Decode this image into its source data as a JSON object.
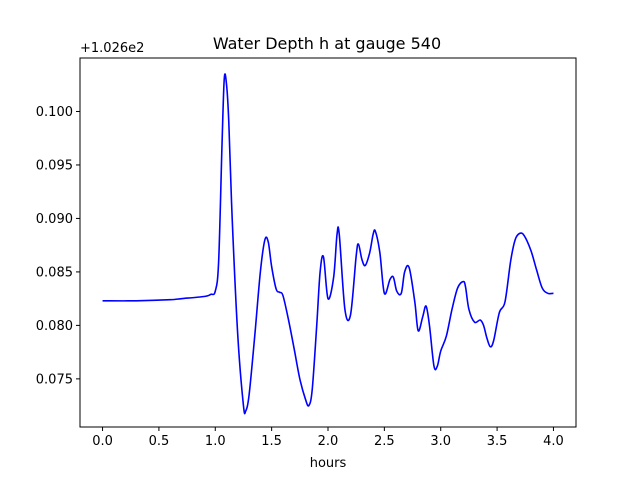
{
  "chart_data": {
    "type": "line",
    "title": "Water Depth h at gauge 540",
    "xlabel": "hours",
    "ylabel": "",
    "offset_label": "+1.026e2",
    "xlim": [
      -0.2,
      4.2
    ],
    "ylim": [
      0.0705,
      0.105
    ],
    "x_ticks": [
      0.0,
      0.5,
      1.0,
      1.5,
      2.0,
      2.5,
      3.0,
      3.5,
      4.0
    ],
    "x_tick_labels": [
      "0.0",
      "0.5",
      "1.0",
      "1.5",
      "2.0",
      "2.5",
      "3.0",
      "3.5",
      "4.0"
    ],
    "y_ticks": [
      0.075,
      0.08,
      0.085,
      0.09,
      0.095,
      0.1
    ],
    "y_tick_labels": [
      "0.075",
      "0.080",
      "0.085",
      "0.090",
      "0.095",
      "0.100"
    ],
    "grid": false,
    "series": [
      {
        "color": "#0000ff",
        "x": [
          0.0,
          0.3,
          0.6,
          0.7,
          0.9,
          0.96,
          1.0,
          1.03,
          1.06,
          1.08,
          1.1,
          1.12,
          1.15,
          1.2,
          1.25,
          1.27,
          1.3,
          1.35,
          1.4,
          1.44,
          1.47,
          1.5,
          1.54,
          1.57,
          1.6,
          1.65,
          1.7,
          1.75,
          1.8,
          1.83,
          1.86,
          1.9,
          1.93,
          1.96,
          2.0,
          2.05,
          2.08,
          2.1,
          2.15,
          2.2,
          2.25,
          2.27,
          2.3,
          2.33,
          2.37,
          2.4,
          2.42,
          2.46,
          2.5,
          2.55,
          2.58,
          2.61,
          2.65,
          2.68,
          2.72,
          2.77,
          2.8,
          2.84,
          2.87,
          2.9,
          2.94,
          2.97,
          3.0,
          3.05,
          3.1,
          3.15,
          3.2,
          3.22,
          3.25,
          3.3,
          3.35,
          3.38,
          3.41,
          3.44,
          3.47,
          3.52,
          3.57,
          3.62,
          3.66,
          3.7,
          3.74,
          3.8,
          3.85,
          3.9,
          3.95,
          4.0
        ],
        "y": [
          0.0823,
          0.0823,
          0.0824,
          0.0825,
          0.0827,
          0.0829,
          0.0832,
          0.086,
          0.097,
          0.1031,
          0.1025,
          0.099,
          0.09,
          0.079,
          0.0725,
          0.072,
          0.0735,
          0.079,
          0.085,
          0.088,
          0.0878,
          0.0855,
          0.0834,
          0.0831,
          0.0828,
          0.0805,
          0.0778,
          0.075,
          0.0731,
          0.0725,
          0.074,
          0.08,
          0.085,
          0.0864,
          0.0825,
          0.0845,
          0.0885,
          0.0885,
          0.0815,
          0.081,
          0.0865,
          0.0876,
          0.0862,
          0.0856,
          0.0868,
          0.0885,
          0.0888,
          0.0868,
          0.083,
          0.0843,
          0.0845,
          0.0832,
          0.083,
          0.085,
          0.0854,
          0.0822,
          0.0795,
          0.0808,
          0.0818,
          0.08,
          0.0762,
          0.0762,
          0.0776,
          0.079,
          0.0815,
          0.0835,
          0.0841,
          0.0836,
          0.0815,
          0.0803,
          0.0805,
          0.08,
          0.0788,
          0.078,
          0.0786,
          0.0812,
          0.0822,
          0.086,
          0.088,
          0.0886,
          0.0884,
          0.087,
          0.0852,
          0.0835,
          0.083,
          0.083
        ]
      }
    ]
  }
}
